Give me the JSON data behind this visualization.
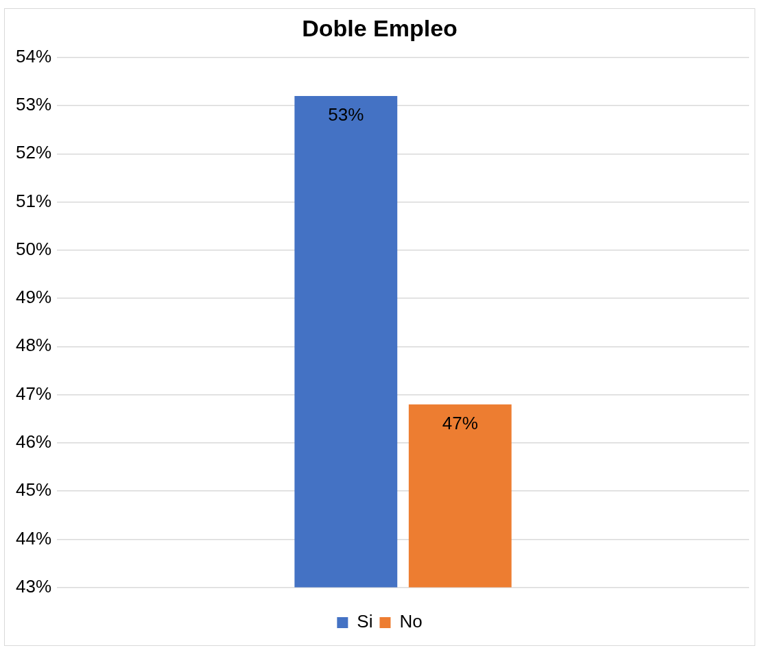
{
  "chart_data": {
    "type": "bar",
    "title": "Doble Empleo",
    "categories": [
      null
    ],
    "series": [
      {
        "name": "Si",
        "color": "#4472c4",
        "values": [
          53.2
        ],
        "value_labels": [
          "53%"
        ]
      },
      {
        "name": "No",
        "color": "#ed7d31",
        "values": [
          46.8
        ],
        "value_labels": [
          "47%"
        ]
      }
    ],
    "ylim": [
      43,
      54
    ],
    "yticks": [
      {
        "value": 43,
        "label": "43%"
      },
      {
        "value": 44,
        "label": "44%"
      },
      {
        "value": 45,
        "label": "45%"
      },
      {
        "value": 46,
        "label": "46%"
      },
      {
        "value": 47,
        "label": "47%"
      },
      {
        "value": 48,
        "label": "48%"
      },
      {
        "value": 49,
        "label": "49%"
      },
      {
        "value": 50,
        "label": "50%"
      },
      {
        "value": 51,
        "label": "51%"
      },
      {
        "value": 52,
        "label": "52%"
      },
      {
        "value": 53,
        "label": "53%"
      },
      {
        "value": 54,
        "label": "54%"
      }
    ],
    "grid": "y",
    "legend": "bottom"
  }
}
